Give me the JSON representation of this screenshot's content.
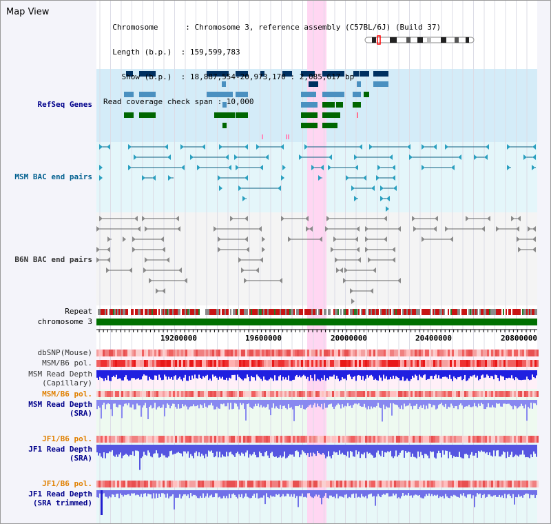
{
  "view": {
    "title": "Map View",
    "info_lines": [
      "  Chromosome      : Chromosome 3, reference assembly (C57BL/6J) (Build 37)",
      "  Length (b.p.)  : 159,599,783",
      "    Show (b.p.)  : 18,887,554-20,973,170 : 2,085,617 bp",
      "Read coverage check span : 10,000"
    ]
  },
  "tracks": {
    "refseq": "RefSeq Genes",
    "msm_bac": "MSM BAC end pairs",
    "b6n_bac": "B6N BAC end pairs",
    "repeat": "Repeat",
    "chromosome": "chromosome 3",
    "dbsnp": "dbSNP(Mouse)",
    "msm_pol": "MSM/B6 pol.",
    "msm_depth_cap_1": "MSM Read Depth",
    "msm_depth_cap_2": "(Capillary)",
    "msm_pol2": "MSM/B6 pol.",
    "msm_depth_sra_1": "MSM Read Depth",
    "msm_depth_sra_2": "(SRA)",
    "jf1_pol": "JF1/B6 pol.",
    "jf1_depth_sra_1": "JF1 Read Depth",
    "jf1_depth_sra_2": "(SRA)",
    "jf1_pol2": "JF1/B6 pol.",
    "jf1_depth_trim_1": "JF1 Read Depth",
    "jf1_depth_trim_2": "(SRA trimmed)"
  },
  "axis": {
    "ticks": [
      "19200000",
      "19600000",
      "20000000",
      "20400000",
      "20800000"
    ]
  },
  "colors": {
    "refseq_label": "#00008b",
    "msm_bac_label": "#005f8f",
    "b6n_bac_label": "#333333",
    "pol_orange": "#e08000",
    "depth_blue": "#00008b",
    "highlight": "#ffd6f2",
    "chromosome_green": "#007000",
    "gene_dark": "#003060",
    "gene_light": "#4a90c0",
    "gene_green": "#006600"
  }
}
